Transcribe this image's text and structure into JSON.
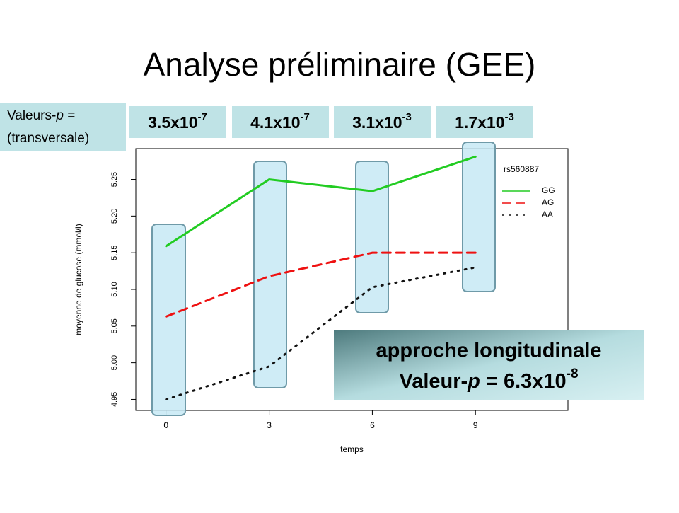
{
  "slide": {
    "title": "Analyse préliminaire (GEE)",
    "pvalue_label": {
      "line1": {
        "before": "Valeurs-",
        "italic": "p",
        "after": " ="
      },
      "line2": "(transversale)"
    },
    "pvalues": [
      {
        "base": "3.5x10",
        "exp": "-7"
      },
      {
        "base": "4.1x10",
        "exp": "-7"
      },
      {
        "base": "3.1x10",
        "exp": "-3"
      },
      {
        "base": "1.7x10",
        "exp": "-3"
      }
    ],
    "longitudinal": {
      "line1": "approche longitudinale",
      "line2": {
        "before": "Valeur-",
        "italic": "p",
        "after": " = 6.3x10",
        "exp": "-8"
      }
    }
  },
  "chart_data": {
    "type": "line",
    "x_label": "temps",
    "y_label": "moyenne de glucose (mmol/l)",
    "x": [
      0,
      3,
      6,
      9
    ],
    "xlim": [
      -0.88,
      11.69
    ],
    "xticks": [
      0,
      3,
      6,
      9
    ],
    "ylim": [
      4.935,
      5.292
    ],
    "yticks": [
      4.95,
      {
        "value": 5,
        "label": "5.00"
      },
      5.05,
      {
        "value": 5.1,
        "label": "5.10"
      },
      5.15,
      {
        "value": 5.2,
        "label": "5.20"
      },
      5.25
    ],
    "legend_title": "rs560887",
    "legend": "upper right",
    "series": [
      {
        "name": "GG",
        "color": "#22cc22",
        "style": "solid",
        "values": [
          5.159,
          5.25,
          5.234,
          5.281
        ]
      },
      {
        "name": "AG",
        "color": "#ee1111",
        "style": "dashed",
        "values": [
          5.063,
          5.118,
          5.15,
          5.15
        ]
      },
      {
        "name": "AA",
        "color": "#111111",
        "style": "dotted",
        "values": [
          4.95,
          4.995,
          5.103,
          5.13
        ]
      }
    ]
  }
}
